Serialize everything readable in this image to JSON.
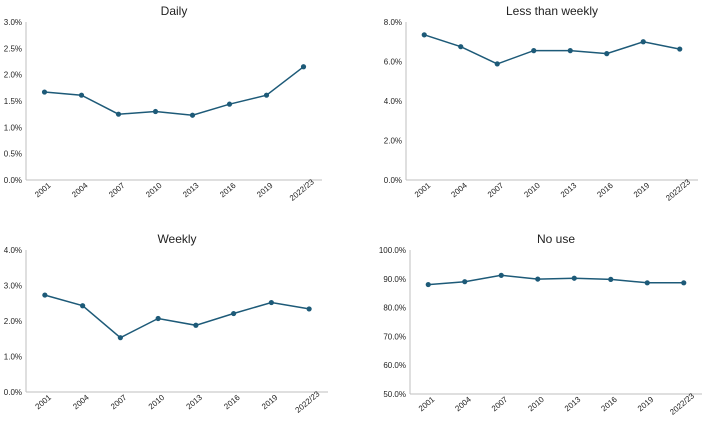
{
  "chart_data": [
    {
      "type": "line",
      "title": "Daily",
      "categories": [
        "2001",
        "2004",
        "2007",
        "2010",
        "2013",
        "2016",
        "2019",
        "2022/23"
      ],
      "values": [
        1.67,
        1.61,
        1.25,
        1.3,
        1.23,
        1.44,
        1.61,
        2.15
      ],
      "ylim": [
        0,
        3.0
      ],
      "yticks": [
        "0.0%",
        "0.5%",
        "1.0%",
        "1.5%",
        "2.0%",
        "2.5%",
        "3.0%"
      ],
      "y_unit": "%",
      "grid": false,
      "color": "#1d5a78"
    },
    {
      "type": "line",
      "title": "Less than weekly",
      "categories": [
        "2001",
        "2004",
        "2007",
        "2010",
        "2013",
        "2016",
        "2019",
        "2022/23"
      ],
      "values": [
        7.35,
        6.75,
        5.88,
        6.55,
        6.55,
        6.4,
        7.0,
        6.63
      ],
      "ylim": [
        0,
        8.0
      ],
      "yticks": [
        "0.0%",
        "2.0%",
        "4.0%",
        "6.0%",
        "8.0%"
      ],
      "y_unit": "%",
      "grid": false,
      "color": "#1d5a78"
    },
    {
      "type": "line",
      "title": "Weekly",
      "categories": [
        "2001",
        "2004",
        "2007",
        "2010",
        "2013",
        "2016",
        "2019",
        "2022/23"
      ],
      "values": [
        2.73,
        2.43,
        1.53,
        2.07,
        1.88,
        2.21,
        2.52,
        2.34
      ],
      "ylim": [
        0,
        4.0
      ],
      "yticks": [
        "0.0%",
        "1.0%",
        "2.0%",
        "3.0%",
        "4.0%"
      ],
      "y_unit": "%",
      "grid": false,
      "color": "#1d5a78"
    },
    {
      "type": "line",
      "title": "No use",
      "categories": [
        "2001",
        "2004",
        "2007",
        "2010",
        "2013",
        "2016",
        "2019",
        "2022/23"
      ],
      "values": [
        88.0,
        89.0,
        91.2,
        89.9,
        90.2,
        89.8,
        88.6,
        88.6
      ],
      "ylim": [
        50,
        100
      ],
      "yticks": [
        "50.0%",
        "60.0%",
        "70.0%",
        "80.0%",
        "90.0%",
        "100.0%"
      ],
      "y_unit": "%",
      "grid": false,
      "color": "#1d5a78"
    }
  ]
}
